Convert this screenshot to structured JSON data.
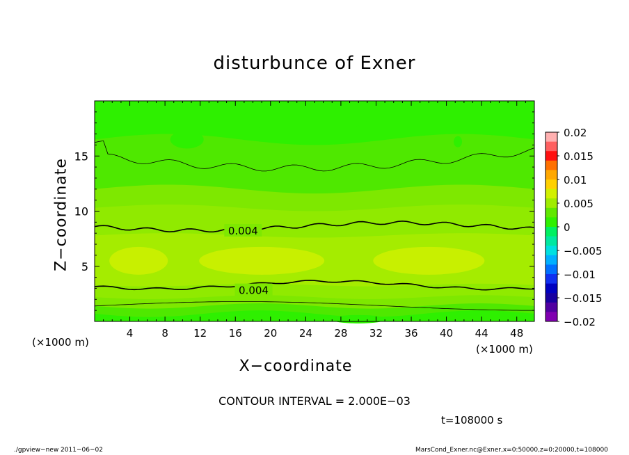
{
  "chart_data": {
    "type": "heatmap",
    "title": "disturbunce of Exner",
    "xlabel": "X−coordinate",
    "ylabel": "Z−coordinate",
    "x_unit": "(×1000 m)",
    "z_unit": "(×1000 m)",
    "xlim": [
      0,
      50
    ],
    "ylim": [
      0,
      20
    ],
    "x_ticks": [
      "4",
      "8",
      "12",
      "16",
      "20",
      "24",
      "28",
      "32",
      "36",
      "40",
      "44",
      "48"
    ],
    "y_ticks": [
      "5",
      "10",
      "15"
    ],
    "contour_interval": "CONTOUR INTERVAL = 2.000E−03",
    "contour_labels": [
      {
        "text": "0.004",
        "x": 16.8,
        "z": 8.2
      },
      {
        "text": "0.004",
        "x": 18.0,
        "z": 2.8
      }
    ],
    "contour_levels": [
      0.002,
      0.004
    ],
    "colorbar": {
      "labels": [
        "0.02",
        "0.015",
        "0.01",
        "0.005",
        "0",
        "−0.005",
        "−0.01",
        "−0.015",
        "−0.02"
      ],
      "colors": [
        "#ffb0b0",
        "#ff6060",
        "#ff1010",
        "#ff7000",
        "#ffa800",
        "#ffd000",
        "#d2f000",
        "#a0ec00",
        "#60e800",
        "#2ef000",
        "#00f060",
        "#00e8a0",
        "#00e0e0",
        "#00b0ff",
        "#0070ff",
        "#1030f0",
        "#0000c0",
        "#1800a0",
        "#5000a0",
        "#8000b0"
      ]
    },
    "field_colors": {
      "neg": "#2ef000",
      "low": "#4fe800",
      "mid": "#7ee800",
      "high": "#a5ec00",
      "peak": "#c8f000"
    }
  },
  "time_label": "t=108000 s",
  "footer_left": "./gpview−new   2011−06−02",
  "footer_right": "MarsCond_Exner.nc@Exner,x=0:50000,z=0:20000,t=108000"
}
